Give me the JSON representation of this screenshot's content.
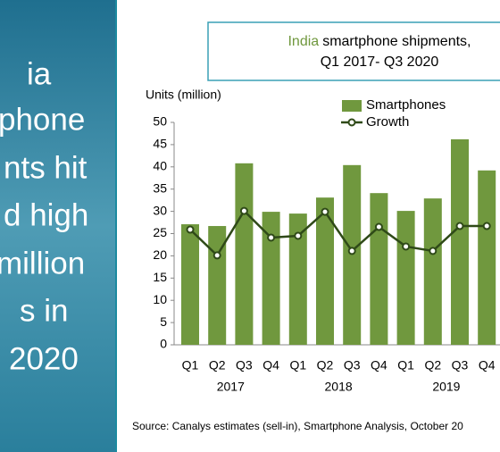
{
  "side_panel": {
    "lines": [
      {
        "text": "ia",
        "color": "#ffffff"
      },
      {
        "text": "phone",
        "color": "#ffffff"
      },
      {
        "text": "nts hit",
        "color": "#ffffff"
      },
      {
        "text": "d high",
        "color": "#9bd36a"
      },
      {
        "text": "million",
        "color": "#9bd36a"
      },
      {
        "text": "s in",
        "color": "#ffffff"
      },
      {
        "text": "2020",
        "color": "#ffffff"
      }
    ]
  },
  "chart_data": {
    "type": "bar",
    "title_highlight": "India",
    "title_line1": "smartphone shipments,",
    "title_line2": "Q1 2017- Q3 2020",
    "y_label": "Units (million)",
    "categories": [
      "Q1",
      "Q2",
      "Q3",
      "Q4",
      "Q1",
      "Q2",
      "Q3",
      "Q4",
      "Q1",
      "Q2",
      "Q3",
      "Q4"
    ],
    "year_groups": [
      "2017",
      "2018",
      "2019"
    ],
    "ylim": [
      0,
      50
    ],
    "yticks": [
      0,
      5,
      10,
      15,
      20,
      25,
      30,
      35,
      40,
      45,
      50
    ],
    "series": [
      {
        "name": "Smartphones",
        "color": "#70983e",
        "values": [
          27.1,
          26.7,
          40.8,
          29.9,
          29.5,
          33.1,
          40.4,
          34.1,
          30.1,
          32.9,
          46.2,
          39.2
        ]
      },
      {
        "name": "Growth",
        "color": "#2f4a18",
        "type": "line",
        "values": [
          25.9,
          20.1,
          30.1,
          24.1,
          24.5,
          29.9,
          21.1,
          26.5,
          22.1,
          21.1,
          26.7,
          26.7
        ]
      }
    ],
    "source": "Source: Canalys estimates (sell-in), Smartphone Analysis, October 20"
  }
}
